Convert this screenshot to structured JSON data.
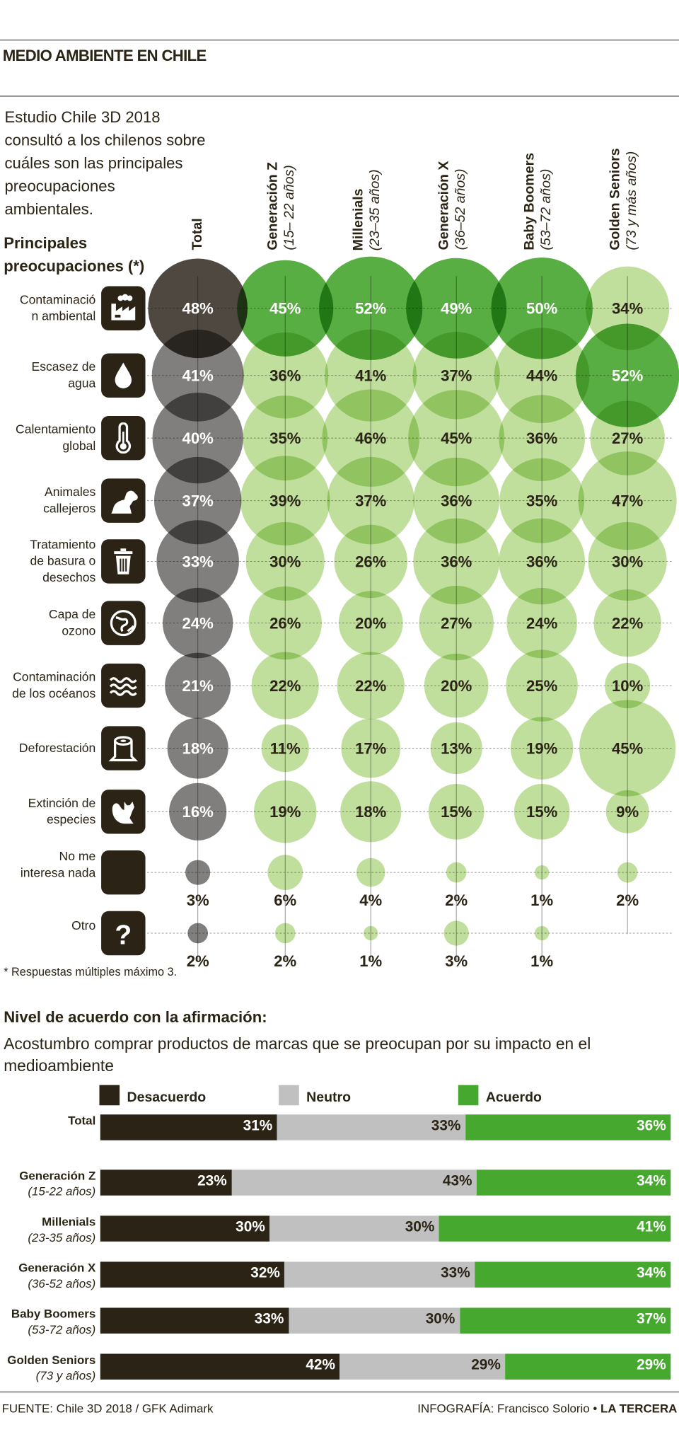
{
  "header": {
    "title": "MEDIO AMBIENTE EN CHILE"
  },
  "intro": "Estudio Chile 3D 2018\nconsultó a los chilenos sobre\ncuáles son las principales\npreocupaciones\nambientales.",
  "concerns_title": "Principales\npreocupaciones (*)",
  "colors": {
    "dark": "#2b2416",
    "total_hi": "#3b342c",
    "total": "#6b6966",
    "green_hi": "#47a52f",
    "green": "#b9dc92",
    "neutral": "#c0c0c0",
    "agree": "#46a82f"
  },
  "chart_data": [
    {
      "type": "bubble-matrix",
      "title": "Principales preocupaciones (*)",
      "columns": [
        {
          "name": "Total",
          "age": ""
        },
        {
          "name": "Generación Z",
          "age": "(15– 22 años)"
        },
        {
          "name": "Millenials",
          "age": "(23–35 años)"
        },
        {
          "name": "Generación X",
          "age": "(36–52 años)"
        },
        {
          "name": "Baby Boomers",
          "age": "(53–72 años)"
        },
        {
          "name": "Golden Seniors",
          "age": "(73 y más años)"
        }
      ],
      "rows": [
        {
          "label": "Contaminació\nn ambiental",
          "icon": "factory-icon",
          "values": [
            48,
            45,
            52,
            49,
            50,
            34
          ]
        },
        {
          "label": "Escasez de\nagua",
          "icon": "water-drop-icon",
          "values": [
            41,
            36,
            41,
            37,
            44,
            52
          ]
        },
        {
          "label": "Calentamiento\nglobal",
          "icon": "thermometer-icon",
          "values": [
            40,
            35,
            46,
            45,
            36,
            27
          ]
        },
        {
          "label": "Animales\ncallejeros",
          "icon": "dog-icon",
          "values": [
            37,
            39,
            37,
            36,
            35,
            47
          ]
        },
        {
          "label": "Tratamiento\nde basura o\ndesechos",
          "icon": "trash-can-icon",
          "values": [
            33,
            30,
            26,
            36,
            36,
            30
          ]
        },
        {
          "label": "Capa de\nozono",
          "icon": "globe-icon",
          "values": [
            24,
            26,
            20,
            27,
            24,
            22
          ]
        },
        {
          "label": "Contaminación\nde los océanos",
          "icon": "waves-icon",
          "values": [
            21,
            22,
            22,
            20,
            25,
            10
          ]
        },
        {
          "label": "Deforestación",
          "icon": "tree-stump-icon",
          "values": [
            18,
            11,
            17,
            13,
            19,
            45
          ]
        },
        {
          "label": "Extinción de\nespecies",
          "icon": "fox-icon",
          "values": [
            16,
            19,
            18,
            15,
            15,
            9
          ]
        },
        {
          "label": "No me\ninteresa nada",
          "icon": "blank-icon",
          "values": [
            3,
            6,
            4,
            2,
            1,
            2
          ]
        },
        {
          "label": "Otro",
          "icon": "question-icon",
          "values": [
            2,
            2,
            1,
            3,
            1,
            null
          ]
        }
      ],
      "unit": "%",
      "footnote": "* Respuestas múltiples máximo 3."
    },
    {
      "type": "stacked-bar",
      "title": "Nivel de acuerdo con la afirmación:",
      "subtitle": "Acostumbro comprar productos de marcas que se preocupan por su impacto en el medioambiente",
      "legend": [
        "Desacuerdo",
        "Neutro",
        "Acuerdo"
      ],
      "rows": [
        {
          "name": "Total",
          "age": "",
          "values": [
            31,
            33,
            36
          ]
        },
        {
          "name": "Generación Z",
          "age": "(15-22 años)",
          "values": [
            23,
            43,
            34
          ]
        },
        {
          "name": "Millenials",
          "age": "(23-35 años)",
          "values": [
            30,
            30,
            41
          ]
        },
        {
          "name": "Generación X",
          "age": "(36-52 años)",
          "values": [
            32,
            33,
            34
          ]
        },
        {
          "name": "Baby Boomers",
          "age": "(53-72 años)",
          "values": [
            33,
            30,
            37
          ]
        },
        {
          "name": "Golden Seniors",
          "age": "(73 y  años)",
          "values": [
            42,
            29,
            29
          ]
        }
      ],
      "unit": "%"
    }
  ],
  "footer": {
    "source": "FUENTE: Chile 3D 2018 / GFK Adimark",
    "credit": "INFOGRAFÍA: Francisco Solorio",
    "separator": "•",
    "brand": "LA TERCERA"
  }
}
